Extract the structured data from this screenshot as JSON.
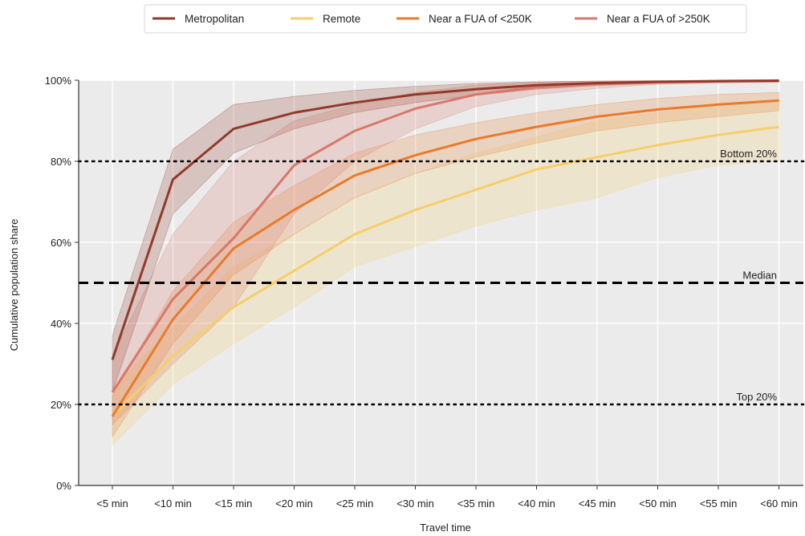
{
  "chart_data": {
    "type": "line",
    "title": "",
    "xlabel": "Travel time",
    "ylabel": "Cumulative population share",
    "categories": [
      "<5 min",
      "<10 min",
      "<15 min",
      "<20 min",
      "<25 min",
      "<30 min",
      "<35 min",
      "<40 min",
      "<45 min",
      "<50 min",
      "<55 min",
      "<60 min"
    ],
    "ylim": [
      0,
      100
    ],
    "yticks": [
      0,
      20,
      40,
      60,
      80,
      100
    ],
    "ytick_labels": [
      "0%",
      "20%",
      "40%",
      "60%",
      "80%",
      "100%"
    ],
    "grid": true,
    "legend_position": "top-center",
    "reference_lines": [
      {
        "label": "Bottom 20%",
        "value": 80,
        "style": "dotted"
      },
      {
        "label": "Median",
        "value": 50,
        "style": "dashed"
      },
      {
        "label": "Top 20%",
        "value": 20,
        "style": "dotted"
      }
    ],
    "series": [
      {
        "name": "Metropolitan",
        "color": "#93392a",
        "values": [
          31,
          75.5,
          88,
          92,
          94.5,
          96.5,
          97.8,
          98.8,
          99.3,
          99.6,
          99.8,
          99.9
        ],
        "lower": [
          23,
          67,
          82,
          88,
          92,
          94.5,
          96.3,
          97.8,
          98.7,
          99.2,
          99.5,
          99.7
        ],
        "upper": [
          37,
          83,
          94,
          96,
          97.5,
          98.5,
          99.2,
          99.6,
          99.8,
          99.9,
          99.9,
          100
        ]
      },
      {
        "name": "Remote",
        "color": "#f6ce6a",
        "values": [
          17,
          32,
          44,
          53,
          62,
          68,
          73,
          78,
          81,
          84,
          86.5,
          88.5
        ],
        "lower": [
          10,
          25,
          35,
          44,
          54,
          59,
          64,
          68,
          71,
          76,
          79,
          80
        ],
        "upper": [
          24,
          39,
          54,
          62,
          71,
          77,
          82,
          86,
          90,
          92,
          94,
          95
        ]
      },
      {
        "name": "Near a FUA of <250K",
        "color": "#ea7a2a",
        "values": [
          17,
          41,
          58.5,
          68,
          76.5,
          81.5,
          85.5,
          88.5,
          91,
          92.8,
          94,
          95
        ],
        "lower": [
          12,
          35,
          52,
          62,
          71,
          77,
          81,
          84.5,
          87.5,
          89.5,
          91,
          92.5
        ],
        "upper": [
          22,
          48,
          65,
          74,
          82,
          86.5,
          89.5,
          92,
          94,
          95.5,
          96.5,
          97
        ]
      },
      {
        "name": "Near a FUA of >250K",
        "color": "#d9776a",
        "values": [
          23,
          46,
          61,
          79,
          87.5,
          93,
          96.5,
          98.3,
          99.1,
          99.5,
          99.7,
          99.8
        ],
        "lower": [
          15,
          30,
          44,
          67,
          80,
          88,
          93.5,
          96.5,
          98,
          99,
          99.3,
          99.5
        ],
        "upper": [
          32,
          62,
          80,
          90,
          94,
          97,
          98.8,
          99.5,
          99.8,
          99.9,
          100,
          100
        ]
      }
    ]
  }
}
